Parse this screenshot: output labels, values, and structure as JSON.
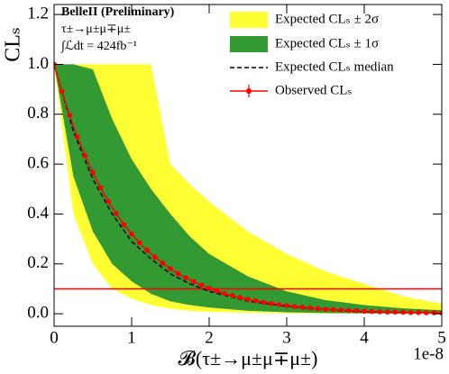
{
  "chart_data": {
    "type": "line",
    "ylabel": "CLₛ",
    "xlabel": "𝓑(τ±→μ±μ∓μ±)",
    "x_offset_label": "1e-8",
    "annotations": [
      "BelleII (Preliminary)",
      "τ±→μ±μ∓μ±",
      "∫ℒdt = 424fb⁻¹"
    ],
    "xlim": [
      0,
      5
    ],
    "ylim": [
      -0.05,
      1.24
    ],
    "xticks": [
      0,
      1,
      2,
      3,
      4,
      5
    ],
    "yticks": [
      {
        "value": 0,
        "label": "0.0"
      },
      0.2,
      0.4,
      0.6,
      0.8,
      {
        "value": 1,
        "label": "1.0"
      },
      1.2
    ],
    "bands": [
      {
        "name": "Expected CLₛ ± 2σ",
        "color": "#ffff33",
        "x": [
          0,
          0.25,
          0.5,
          0.75,
          1,
          1.25,
          1.5,
          1.75,
          2,
          2.5,
          3,
          3.5,
          4,
          4.5,
          5
        ],
        "lower": [
          1.0,
          0.4,
          0.2,
          0.1,
          0.06,
          0.035,
          0.02,
          0.012,
          0.008,
          0.004,
          0.002,
          0.001,
          0.001,
          0,
          0
        ],
        "upper": [
          1.0,
          1.0,
          1.0,
          1.0,
          1.0,
          1.0,
          0.6,
          0.52,
          0.45,
          0.33,
          0.24,
          0.17,
          0.12,
          0.07,
          0.04
        ]
      },
      {
        "name": "Expected CLₛ ± 1σ",
        "color": "#339933",
        "x": [
          0,
          0.25,
          0.5,
          0.75,
          1,
          1.25,
          1.5,
          1.75,
          2,
          2.5,
          3,
          3.5,
          4,
          4.5,
          5
        ],
        "lower": [
          1.0,
          0.55,
          0.33,
          0.2,
          0.13,
          0.08,
          0.05,
          0.035,
          0.025,
          0.012,
          0.006,
          0.003,
          0.002,
          0.001,
          0.001
        ],
        "upper": [
          1.0,
          1.0,
          0.98,
          0.78,
          0.62,
          0.5,
          0.4,
          0.31,
          0.24,
          0.15,
          0.09,
          0.055,
          0.035,
          0.022,
          0.014
        ]
      }
    ],
    "series": [
      {
        "name": "Expected CLₛ median",
        "color": "#000000",
        "style": "dashed",
        "x": [
          0,
          0.25,
          0.5,
          0.75,
          1,
          1.25,
          1.5,
          1.75,
          2,
          2.5,
          3,
          3.5,
          4,
          4.5,
          5
        ],
        "values": [
          1.0,
          0.73,
          0.54,
          0.4,
          0.29,
          0.22,
          0.16,
          0.12,
          0.09,
          0.05,
          0.03,
          0.015,
          0.008,
          0.005,
          0.003
        ]
      },
      {
        "name": "Observed CLₛ",
        "color": "#ff0000",
        "style": "markers",
        "x": [
          0,
          0.1,
          0.2,
          0.3,
          0.4,
          0.5,
          0.6,
          0.7,
          0.8,
          0.9,
          1,
          1.1,
          1.2,
          1.3,
          1.4,
          1.5,
          1.6,
          1.7,
          1.8,
          1.9,
          2,
          2.1,
          2.2,
          2.3,
          2.4,
          2.5,
          2.6,
          2.7,
          2.8,
          2.9,
          3,
          3.1,
          3.2,
          3.3,
          3.4,
          3.5,
          3.6,
          3.7,
          3.8,
          3.9,
          4,
          4.1,
          4.2,
          4.3,
          4.4,
          4.5,
          4.6,
          4.7,
          4.8,
          4.9,
          5
        ],
        "values": [
          1.0,
          0.892,
          0.796,
          0.71,
          0.634,
          0.566,
          0.505,
          0.45,
          0.402,
          0.358,
          0.32,
          0.285,
          0.255,
          0.227,
          0.203,
          0.181,
          0.161,
          0.144,
          0.129,
          0.115,
          0.102,
          0.091,
          0.081,
          0.073,
          0.065,
          0.058,
          0.052,
          0.046,
          0.041,
          0.037,
          0.033,
          0.029,
          0.026,
          0.023,
          0.021,
          0.018,
          0.017,
          0.015,
          0.013,
          0.012,
          0.01,
          0.009,
          0.008,
          0.007,
          0.007,
          0.006,
          0.005,
          0.005,
          0.004,
          0.004,
          0.003
        ]
      }
    ],
    "hline": {
      "value": 0.1,
      "color": "#ff0000"
    }
  }
}
